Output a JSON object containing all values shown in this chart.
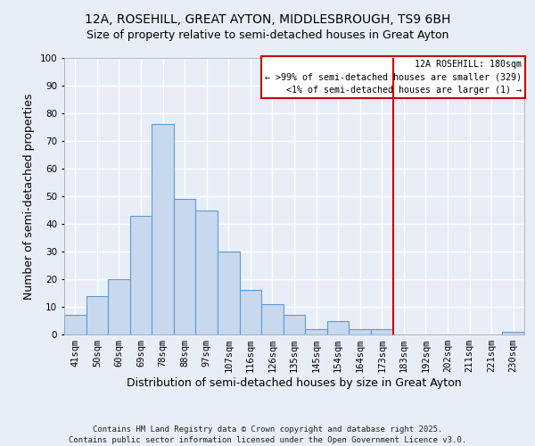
{
  "title": "12A, ROSEHILL, GREAT AYTON, MIDDLESBROUGH, TS9 6BH",
  "subtitle": "Size of property relative to semi-detached houses in Great Ayton",
  "xlabel": "Distribution of semi-detached houses by size in Great Ayton",
  "ylabel": "Number of semi-detached properties",
  "bar_labels": [
    "41sqm",
    "50sqm",
    "60sqm",
    "69sqm",
    "78sqm",
    "88sqm",
    "97sqm",
    "107sqm",
    "116sqm",
    "126sqm",
    "135sqm",
    "145sqm",
    "154sqm",
    "164sqm",
    "173sqm",
    "183sqm",
    "192sqm",
    "202sqm",
    "211sqm",
    "221sqm",
    "230sqm"
  ],
  "bar_values": [
    7,
    14,
    20,
    43,
    76,
    49,
    45,
    30,
    16,
    11,
    7,
    2,
    5,
    2,
    2,
    0,
    0,
    0,
    0,
    0,
    1
  ],
  "bar_color": "#c8d8ee",
  "bar_edge_color": "#5b9bd5",
  "vline_color": "#cc0000",
  "legend_line1": "12A ROSEHILL: 180sqm",
  "legend_line2": "← >99% of semi-detached houses are smaller (329)",
  "legend_line3": "    <1% of semi-detached houses are larger (1) →",
  "ylim": [
    0,
    100
  ],
  "yticks": [
    0,
    10,
    20,
    30,
    40,
    50,
    60,
    70,
    80,
    90,
    100
  ],
  "footer1": "Contains HM Land Registry data © Crown copyright and database right 2025.",
  "footer2": "Contains public sector information licensed under the Open Government Licence v3.0.",
  "bg_color": "#e8eef8",
  "grid_color": "#ffffff",
  "title_fontsize": 10,
  "subtitle_fontsize": 9,
  "axis_label_fontsize": 9,
  "tick_fontsize": 7.5,
  "footer_fontsize": 6.5
}
